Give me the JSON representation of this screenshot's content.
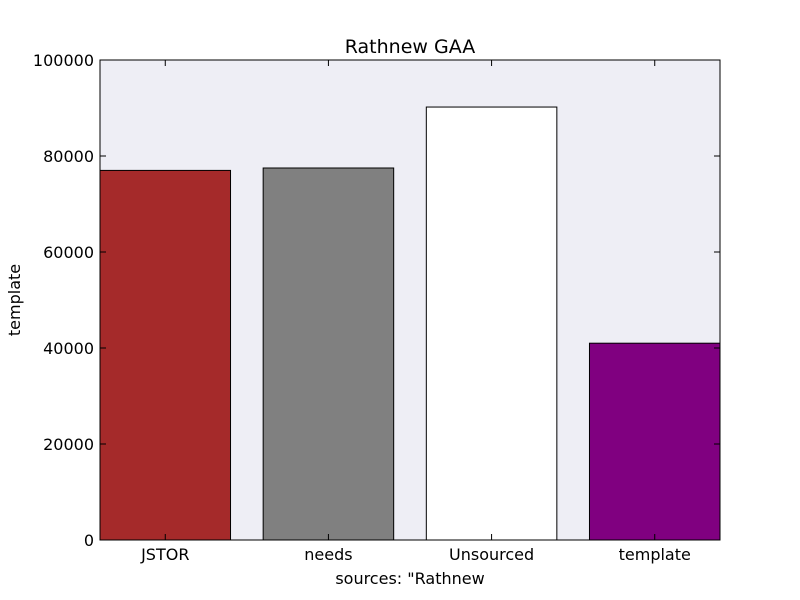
{
  "chart_data": {
    "type": "bar",
    "title": "Rathnew GAA",
    "xlabel": "sources: \"Rathnew",
    "ylabel": "template",
    "categories": [
      "JSTOR",
      "needs",
      "Unsourced",
      "template"
    ],
    "values": [
      77000,
      77500,
      90200,
      41000
    ],
    "bar_colors": [
      "#a52a2a",
      "#808080",
      "#ffffff",
      "#800080"
    ],
    "ylim": [
      0,
      100000
    ],
    "yticks": [
      0,
      20000,
      40000,
      60000,
      80000,
      100000
    ],
    "ytick_labels": [
      "0",
      "20000",
      "40000",
      "60000",
      "80000",
      "100000"
    ],
    "plot_background": "#eeeef5",
    "grid": false,
    "legend": "none"
  }
}
